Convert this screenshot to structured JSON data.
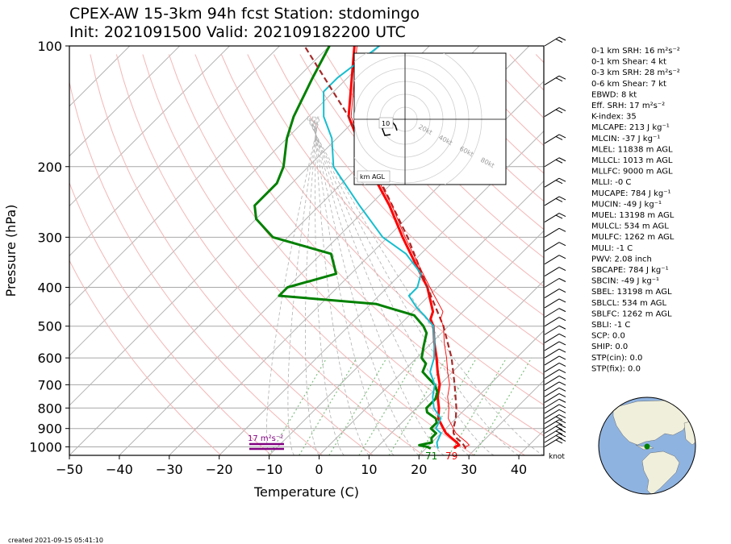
{
  "title": {
    "line1": "CPEX-AW 15-3km  94h fcst  Station: stdomingo",
    "line2": "Init: 2021091500  Valid: 202109182200 UTC"
  },
  "footer": "created 2021-09-15 05:41:10",
  "colors": {
    "temperature": "#ff0000",
    "dewpoint": "#008000",
    "wetbulb": "#17becf",
    "parcel": "#a52a2a",
    "srh_bar": "#800080",
    "dry_adiabat": "#f4b6b6",
    "moist_adiabat": "#b0b0b0",
    "mixing_ratio": "#7fbf7f",
    "ocean": "#8fb3e0",
    "land": "#efefdc"
  },
  "chart_data": {
    "type": "line",
    "subtype": "skew-T log-P sounding",
    "xlabel": "Temperature (C)",
    "ylabel": "Pressure (hPa)",
    "xlim": [
      -50,
      45
    ],
    "ylim": [
      1050,
      100
    ],
    "yscale": "log",
    "x_ticks": [
      "−50",
      "−40",
      "−30",
      "−20",
      "−10",
      "0",
      "10",
      "20",
      "30",
      "40"
    ],
    "y_ticks": [
      "100",
      "200",
      "300",
      "400",
      "500",
      "600",
      "700",
      "800",
      "900",
      "1000"
    ],
    "y_tick_values": [
      100,
      200,
      300,
      400,
      500,
      600,
      700,
      800,
      900,
      1000
    ],
    "series": [
      {
        "key": "temperature",
        "p": [
          1010,
          1000,
          990,
          975,
          950,
          925,
          900,
          850,
          800,
          750,
          700,
          650,
          600,
          550,
          500,
          480,
          460,
          400,
          350,
          300,
          250,
          200,
          150,
          100
        ],
        "t": [
          26,
          25.5,
          26,
          25,
          23,
          21,
          19.5,
          16.5,
          14.5,
          12,
          10,
          7,
          4,
          0.5,
          -3,
          -5,
          -6,
          -12,
          -19,
          -27,
          -36,
          -48,
          -62,
          -75
        ]
      },
      {
        "key": "dewpoint",
        "p": [
          1010,
          1000,
          990,
          975,
          950,
          925,
          900,
          870,
          850,
          820,
          800,
          780,
          760,
          730,
          700,
          670,
          650,
          620,
          600,
          560,
          520,
          500,
          470,
          440,
          420,
          400,
          370,
          330,
          300,
          270,
          250,
          220,
          200,
          170,
          150,
          120,
          100
        ],
        "t": [
          21,
          20,
          18,
          20,
          19,
          19,
          17,
          17,
          16,
          13,
          12,
          12,
          12,
          11,
          9,
          6,
          4,
          3,
          1,
          -1,
          -3,
          -5,
          -9,
          -19,
          -40,
          -40,
          -33,
          -38,
          -53,
          -60,
          -63,
          -63,
          -65,
          -70,
          -73,
          -77,
          -80
        ]
      },
      {
        "key": "wetbulb",
        "p": [
          1010,
          1000,
          975,
          950,
          925,
          900,
          850,
          800,
          750,
          700,
          650,
          600,
          550,
          500,
          470,
          450,
          420,
          400,
          370,
          330,
          300,
          250,
          200,
          170,
          150,
          130,
          120,
          100
        ],
        "t": [
          22.5,
          22,
          21,
          20.5,
          20,
          18,
          17,
          13.5,
          11,
          9,
          5.5,
          3.5,
          0.5,
          -3,
          -7,
          -10,
          -14,
          -14,
          -16,
          -23,
          -31,
          -42,
          -55,
          -61,
          -67,
          -72,
          -72,
          -70
        ]
      },
      {
        "key": "parcel",
        "p": [
          1010,
          1000,
          975,
          950,
          925,
          900,
          850,
          800,
          700,
          600,
          500,
          400,
          300,
          200,
          150,
          100
        ],
        "t": [
          28,
          27.5,
          26,
          24,
          22.5,
          21.5,
          20,
          18,
          13,
          7,
          -1,
          -12,
          -26,
          -47,
          -62,
          -85
        ]
      }
    ],
    "surface_labels": {
      "td": "71",
      "t": "79"
    },
    "srh_label": "17 m²s⁻²",
    "srh_value": 17,
    "wind_unit_label": "knot",
    "hodograph": {
      "rings": [
        "20kt",
        "40kt",
        "60kt",
        "80kt"
      ],
      "height_label": "10",
      "legend": "km AGL"
    }
  },
  "indices": [
    {
      "label": "0-1 km SRH: 16 m²s⁻²"
    },
    {
      "label": "0-1 km Shear: 4 kt"
    },
    {
      "label": "0-3 km SRH: 28 m²s⁻²"
    },
    {
      "label": "0-6 km Shear: 7 kt"
    },
    {
      "label": "EBWD: 8 kt"
    },
    {
      "label": "Eff. SRH: 17 m²s⁻²"
    },
    {
      "label": "K-index: 35"
    },
    {
      "label": "MLCAPE: 213 J kg⁻¹"
    },
    {
      "label": "MLCIN: -37 J kg⁻¹"
    },
    {
      "label": "MLEL: 11838 m AGL"
    },
    {
      "label": "MLLCL: 1013 m AGL"
    },
    {
      "label": "MLLFC: 9000 m AGL"
    },
    {
      "label": "MLLI: -0 C"
    },
    {
      "label": "MUCAPE: 784 J kg⁻¹"
    },
    {
      "label": "MUCIN: -49 J kg⁻¹"
    },
    {
      "label": "MUEL: 13198 m AGL"
    },
    {
      "label": "MULCL: 534 m AGL"
    },
    {
      "label": "MULFC: 1262 m AGL"
    },
    {
      "label": "MULI: -1 C"
    },
    {
      "label": "PWV: 2.08 inch"
    },
    {
      "label": "SBCAPE: 784 J kg⁻¹"
    },
    {
      "label": "SBCIN: -49 J kg⁻¹"
    },
    {
      "label": "SBEL: 13198 m AGL"
    },
    {
      "label": "SBLCL: 534 m AGL"
    },
    {
      "label": "SBLFC: 1262 m AGL"
    },
    {
      "label": "SBLI: -1 C"
    },
    {
      "label": "SCP: 0.0"
    },
    {
      "label": "SHIP: 0.0"
    },
    {
      "label": "STP(cin): 0.0"
    },
    {
      "label": "STP(fix): 0.0"
    }
  ]
}
